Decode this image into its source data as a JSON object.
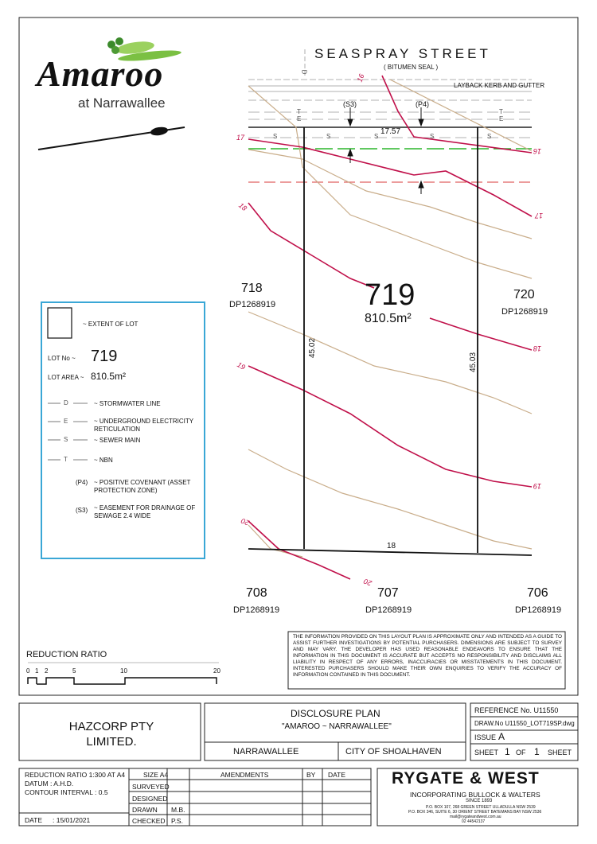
{
  "logo": {
    "brand": "Amaroo",
    "sub": "at Narrawallee"
  },
  "street": {
    "name": "SEASPRAY STREET",
    "surface": "( BITUMEN SEAL )",
    "kerb": "LAYBACK KERB AND GUTTER"
  },
  "covenants": {
    "s3": "(S3)",
    "p4": "(P4)"
  },
  "lot": {
    "number": "719",
    "area": "810.5m²",
    "frontage": "17.57",
    "rear": "18",
    "side_left": "45.02",
    "side_right": "45.03"
  },
  "neighbours": {
    "left": {
      "lot": "718",
      "dp": "DP1268919"
    },
    "right": {
      "lot": "720",
      "dp": "DP1268919"
    },
    "bl": {
      "lot": "708",
      "dp": "DP1268919"
    },
    "bc": {
      "lot": "707",
      "dp": "DP1268919"
    },
    "br": {
      "lot": "706",
      "dp": "DP1268919"
    }
  },
  "contours": {
    "c16a": "16",
    "c16b": "16",
    "c17a": "17",
    "c17b": "17",
    "c18a": "18",
    "c18b": "18",
    "c19a": "19",
    "c19b": "19",
    "c20a": "20",
    "c20b": "20"
  },
  "services": {
    "t": "T",
    "e": "E",
    "s": "S",
    "d": "D"
  },
  "legend": {
    "extent": "~ EXTENT OF LOT",
    "lot_no_label": "LOT No ~",
    "lot_no": "719",
    "lot_area_label": "LOT AREA ~",
    "lot_area": "810.5m²",
    "stormwater_sym": "D",
    "stormwater": "~ STORMWATER LINE",
    "electric_sym": "E",
    "electric": "~ UNDERGROUND ELECTRICITY RETICULATION",
    "sewer_sym": "S",
    "sewer": "~ SEWER MAIN",
    "nbn_sym": "T",
    "nbn": "~ NBN",
    "p4_code": "(P4)",
    "p4": "~ POSITIVE COVENANT (ASSET PROTECTION ZONE)",
    "s3_code": "(S3)",
    "s3": "~ EASEMENT FOR DRAINAGE OF SEWAGE 2.4 WIDE"
  },
  "disclaimer": "THE INFORMATION PROVIDED ON THIS LAYOUT PLAN IS APPROXIMATE ONLY AND INTENDED AS A GUIDE TO ASSIST FURTHER INVESTIGATIONS BY POTENTIAL PURCHASERS. DIMENSIONS ARE SUBJECT TO SURVEY AND MAY VARY. THE DEVELOPER HAS USED REASONABLE ENDEAVORS TO ENSURE THAT THE INFORMATION IN THIS DOCUMENT IS ACCURATE BUT ACCEPTS NO RESPONSIBILITY AND DISCLAIMS ALL LIABILITY IN RESPECT OF ANY ERRORS, INACCURACIES OR MISSTATEMENTS IN THIS DOCUMENT. INTERESTED PURCHASERS SHOULD MAKE THEIR OWN ENQUIRIES TO VERIFY THE ACCURACY OF INFORMATION CONTAINED IN THIS DOCUMENT.",
  "scale": {
    "title": "REDUCTION RATIO",
    "t0": "0",
    "t1": "1",
    "t2": "2",
    "t5": "5",
    "t10": "10",
    "t20": "20"
  },
  "titleblock": {
    "client": "HAZCORP PTY LIMITED.",
    "plan_title": "DISCLOSURE PLAN",
    "plan_sub": "\"AMAROO ~ NARRAWALLEE\"",
    "locality": "NARRAWALLEE",
    "council": "CITY OF SHOALHAVEN",
    "reference": "REFERENCE No. U11550",
    "drawing_no": "DRAW.No U11550_LOT719SP.dwg",
    "issue_label": "ISSUE",
    "issue": "A",
    "sheet_label": "SHEET",
    "sheet_no": "1",
    "of_label": "OF",
    "sheet_total": "1",
    "sheet_suffix": "SHEET"
  },
  "infoblock": {
    "reduction": "REDUCTION RATIO 1:300 AT A4",
    "datum": "DATUM  :  A.H.D.",
    "contour": "CONTOUR INTERVAL  :  0.5",
    "date_label": "DATE",
    "date": ":   15/01/2021",
    "size": "SIZE A4",
    "surveyed": "SURVEYED",
    "designed": "DESIGNED",
    "drawn": "DRAWN",
    "drawn_by": "M.B.",
    "checked": "CHECKED",
    "checked_by": "P.S.",
    "amendments": "AMENDMENTS",
    "by": "BY",
    "date_col": "DATE"
  },
  "surveyor": {
    "name": "RYGATE & WEST",
    "incorporating": "INCORPORATING BULLOCK & WALTERS",
    "since": "SINCE 1893",
    "addr1": "P.O. BOX 107, 268 GREEN STREET ULLADULLA NSW 2539",
    "addr2": "P.O. BOX 346, SUITE 6, 30 ORIENT STREET BATEMANS BAY NSW 2536",
    "email": "mail@rygateandwest.com.au",
    "phone": "02 44542137"
  },
  "colors": {
    "contour": "#c0104a",
    "terrain": "#c9ad8a",
    "sewer_green": "#2bb52b",
    "easement_red": "#e06060",
    "legend_border": "#3aa7d6",
    "leaf": "#7bc043"
  }
}
